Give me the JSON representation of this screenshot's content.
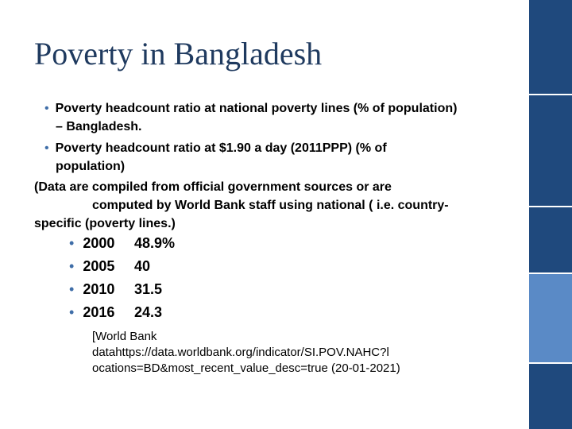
{
  "slide": {
    "title": "Poverty in Bangladesh",
    "bullet_1_line_1": "Poverty headcount ratio at national poverty lines (% of population)",
    "bullet_1_line_2": "– Bangladesh.",
    "bullet_2_line_1": "Poverty headcount ratio at $1.90 a day (2011PPP) (% of",
    "bullet_2_line_2": "population)",
    "note_line_1": "(Data are compiled from official government sources or are",
    "note_line_2": "computed by World Bank staff using national ( i.e. country-",
    "note_line_3": "specific  (poverty lines.)",
    "data_rows": [
      {
        "year": "2000",
        "value": "48.9%"
      },
      {
        "year": "2005",
        "value": "40"
      },
      {
        "year": "2010",
        "value": "31.5"
      },
      {
        "year": "2016",
        "value": "24.3"
      }
    ],
    "source_line_1": "[World Bank",
    "source_line_2": "datahttps://data.worldbank.org/indicator/SI.POV.NAHC?l",
    "source_line_3": "ocations=BD&most_recent_value_desc=true (20-01-2021)"
  },
  "colors": {
    "title": "#1f3a5f",
    "bullet": "#3f6ea8",
    "sidebar_dark": "#1f497d",
    "sidebar_light": "#5a8ac6"
  }
}
